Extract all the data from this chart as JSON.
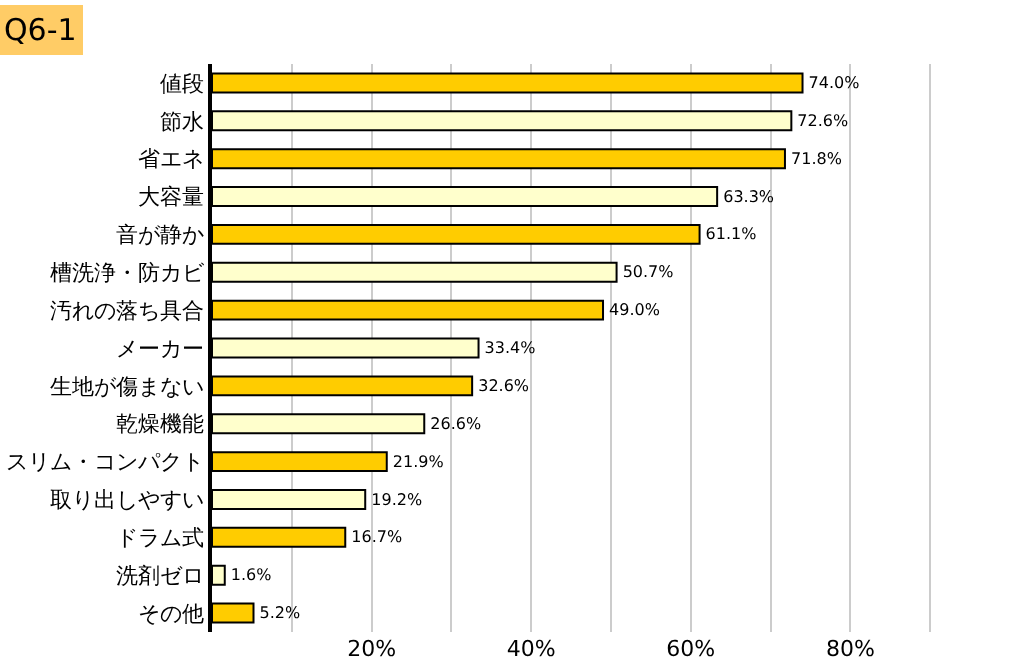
{
  "chart_data": {
    "type": "bar",
    "orientation": "horizontal",
    "title": "Q6-1",
    "categories": [
      "値段",
      "節水",
      "省エネ",
      "大容量",
      "音が静か",
      "槽洗浄・防カビ",
      "汚れの落ち具合",
      "メーカー",
      "生地が傷まない",
      "乾燥機能",
      "スリム・コンパクト",
      "取り出しやすい",
      "ドラム式",
      "洗剤ゼロ",
      "その他"
    ],
    "values": [
      74.0,
      72.6,
      71.8,
      63.3,
      61.1,
      50.7,
      49.0,
      33.4,
      32.6,
      26.6,
      21.9,
      19.2,
      16.7,
      1.6,
      5.2
    ],
    "value_labels": [
      "74.0%",
      "72.6%",
      "71.8%",
      "63.3%",
      "61.1%",
      "50.7%",
      "49.0%",
      "33.4%",
      "32.6%",
      "26.6%",
      "21.9%",
      "19.2%",
      "16.7%",
      "1.6%",
      "5.2%"
    ],
    "colors": [
      "#ffcc00",
      "#ffffcc",
      "#ffcc00",
      "#ffffcc",
      "#ffcc00",
      "#ffffcc",
      "#ffcc00",
      "#ffffcc",
      "#ffcc00",
      "#ffffcc",
      "#ffcc00",
      "#ffffcc",
      "#ffcc00",
      "#ffffcc",
      "#ffcc00"
    ],
    "xlim": [
      0,
      100
    ],
    "xticks": [
      {
        "value": 10,
        "label": null
      },
      {
        "value": 20,
        "label": "20%"
      },
      {
        "value": 30,
        "label": null
      },
      {
        "value": 40,
        "label": "40%"
      },
      {
        "value": 50,
        "label": null
      },
      {
        "value": 60,
        "label": "60%"
      },
      {
        "value": 70,
        "label": null
      },
      {
        "value": 80,
        "label": "80%"
      },
      {
        "value": 90,
        "label": null
      }
    ],
    "grid": true
  }
}
